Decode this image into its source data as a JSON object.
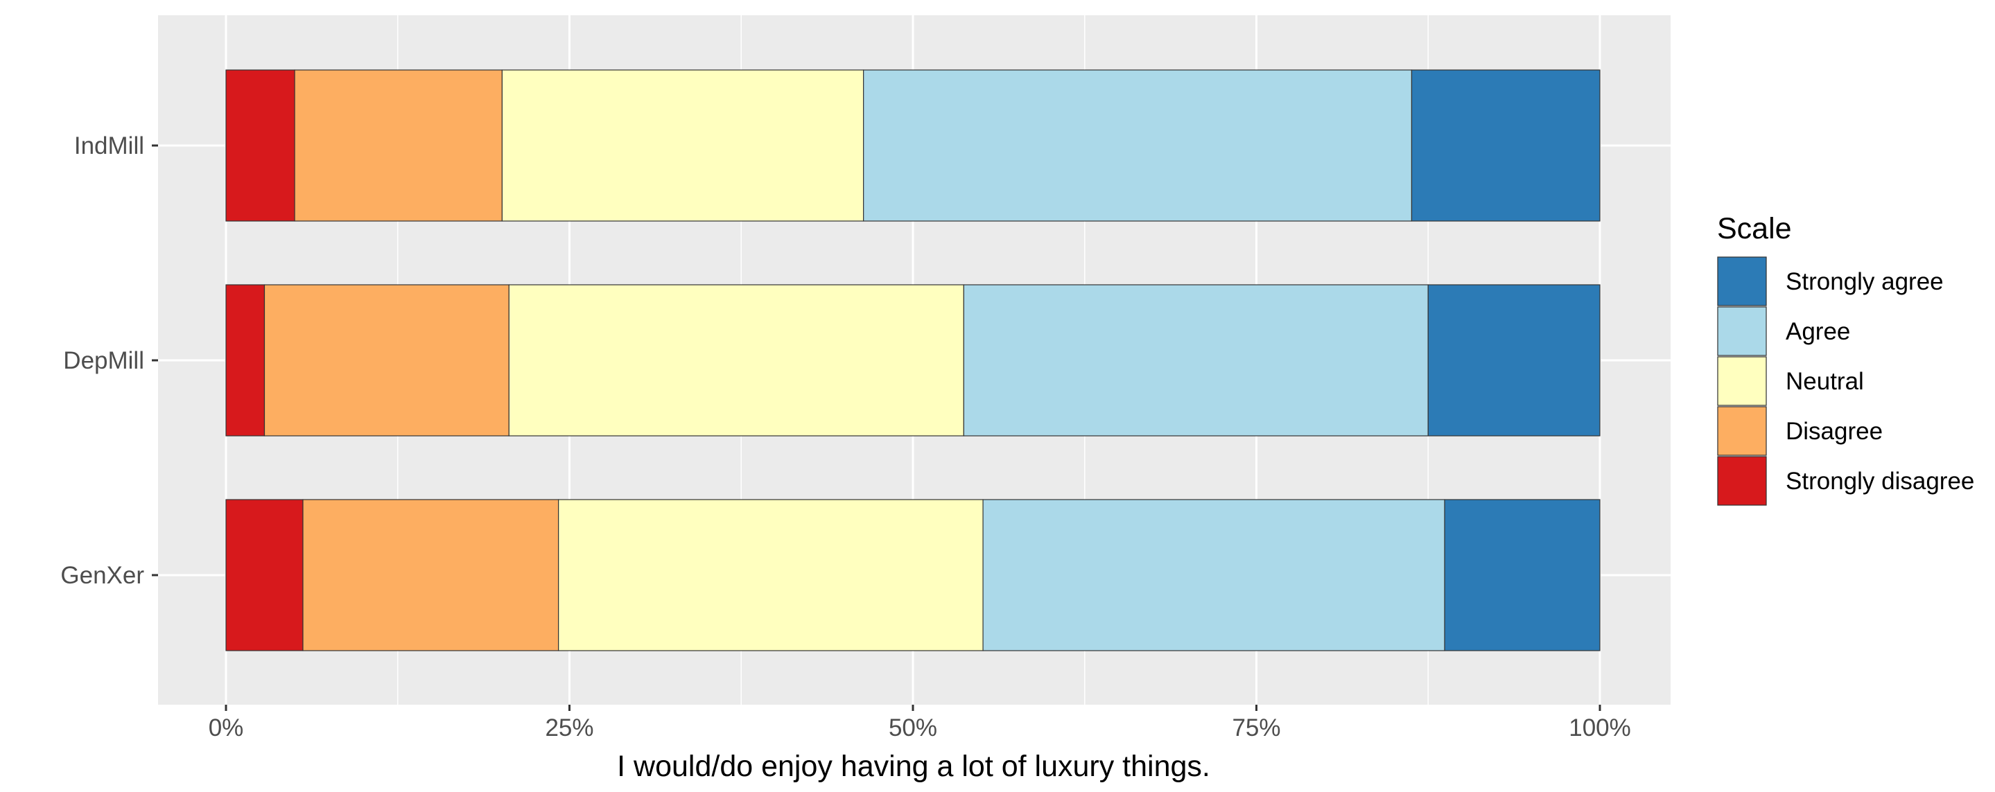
{
  "chart_data": {
    "type": "bar",
    "orientation": "horizontal",
    "stacked": "percent",
    "categories": [
      "IndMill",
      "DepMill",
      "GenXer"
    ],
    "series": [
      {
        "name": "Strongly disagree",
        "color": "#D7191C",
        "values": [
          5.0,
          2.8,
          5.6
        ]
      },
      {
        "name": "Disagree",
        "color": "#FDAE61",
        "values": [
          15.1,
          17.8,
          18.6
        ]
      },
      {
        "name": "Neutral",
        "color": "#FFFFBF",
        "values": [
          26.3,
          33.1,
          30.9
        ]
      },
      {
        "name": "Agree",
        "color": "#ABD9E9",
        "values": [
          39.9,
          33.8,
          33.6
        ]
      },
      {
        "name": "Strongly agree",
        "color": "#2C7BB6",
        "values": [
          13.7,
          12.5,
          11.3
        ]
      }
    ],
    "xlabel": "I would/do enjoy having a lot of luxury things.",
    "ylabel": "",
    "xlim": [
      -5,
      105
    ],
    "x_ticks": [
      "0%",
      "25%",
      "50%",
      "75%",
      "100%"
    ],
    "x_tick_values": [
      0,
      25,
      50,
      75,
      100
    ],
    "legend": {
      "title": "Scale",
      "position": "right",
      "order": [
        "Strongly agree",
        "Agree",
        "Neutral",
        "Disagree",
        "Strongly disagree"
      ]
    },
    "grid": true,
    "panel_background": "#EBEBEB"
  }
}
